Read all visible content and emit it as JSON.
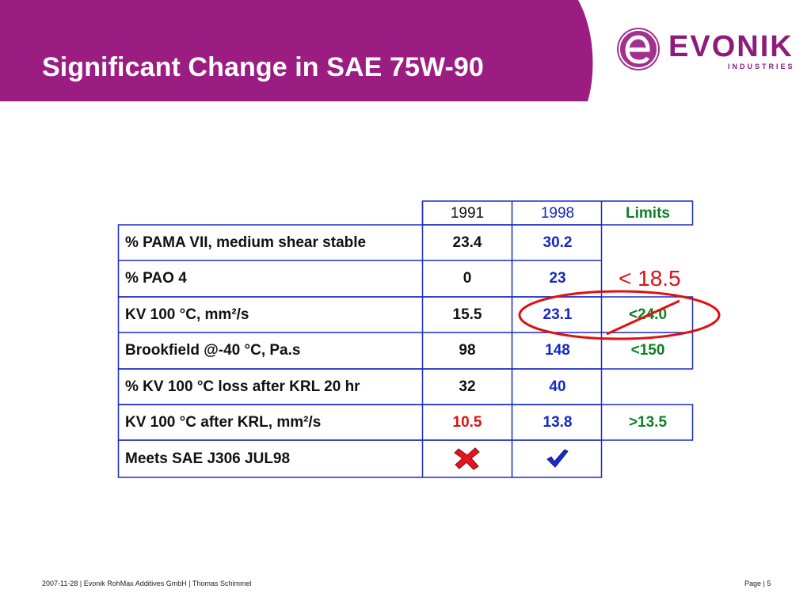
{
  "title": "Significant Change in SAE 75W-90",
  "logo": {
    "word": "EVONIK",
    "sub": "INDUSTRIES",
    "brand_color": "#8e1b7a"
  },
  "colors": {
    "header": "#9b1d82",
    "table_border": "#1b2bc2",
    "blue": "#1526c8",
    "green": "#0e7f25",
    "red": "#e01010"
  },
  "table": {
    "headers": {
      "y1991": "1991",
      "y1998": "1998",
      "limits": "Limits"
    },
    "rows": [
      {
        "label": "% PAMA VII, medium shear stable",
        "v1991": "23.4",
        "v1998": "30.2",
        "limit": ""
      },
      {
        "label": "% PAO 4",
        "v1991": "0",
        "v1998": "23",
        "limit": ""
      },
      {
        "label": "KV 100 °C, mm²/s",
        "v1991": "15.5",
        "v1998": "23.1",
        "limit": "<24.0"
      },
      {
        "label": "Brookfield @-40 °C, Pa.s",
        "v1991": "98",
        "v1998": "148",
        "limit": "<150"
      },
      {
        "label": "% KV 100 °C loss after KRL 20 hr",
        "v1991": "32",
        "v1998": "40",
        "limit": ""
      },
      {
        "label": "KV 100 °C after KRL, mm²/s",
        "v1991": "10.5",
        "v1998": "13.8",
        "limit": ">13.5"
      },
      {
        "label": "Meets SAE J306 JUL98",
        "v1991_icon": "red-x-icon",
        "v1998_icon": "blue-check-icon",
        "limit": ""
      }
    ]
  },
  "annotation": {
    "new_limit": "< 18.5",
    "struck_limit": "<24.0"
  },
  "footer": {
    "left": "2007-11-28 | Evonik RohMax Additives GmbH | Thomas Schimmel",
    "right": "Page | 5"
  }
}
